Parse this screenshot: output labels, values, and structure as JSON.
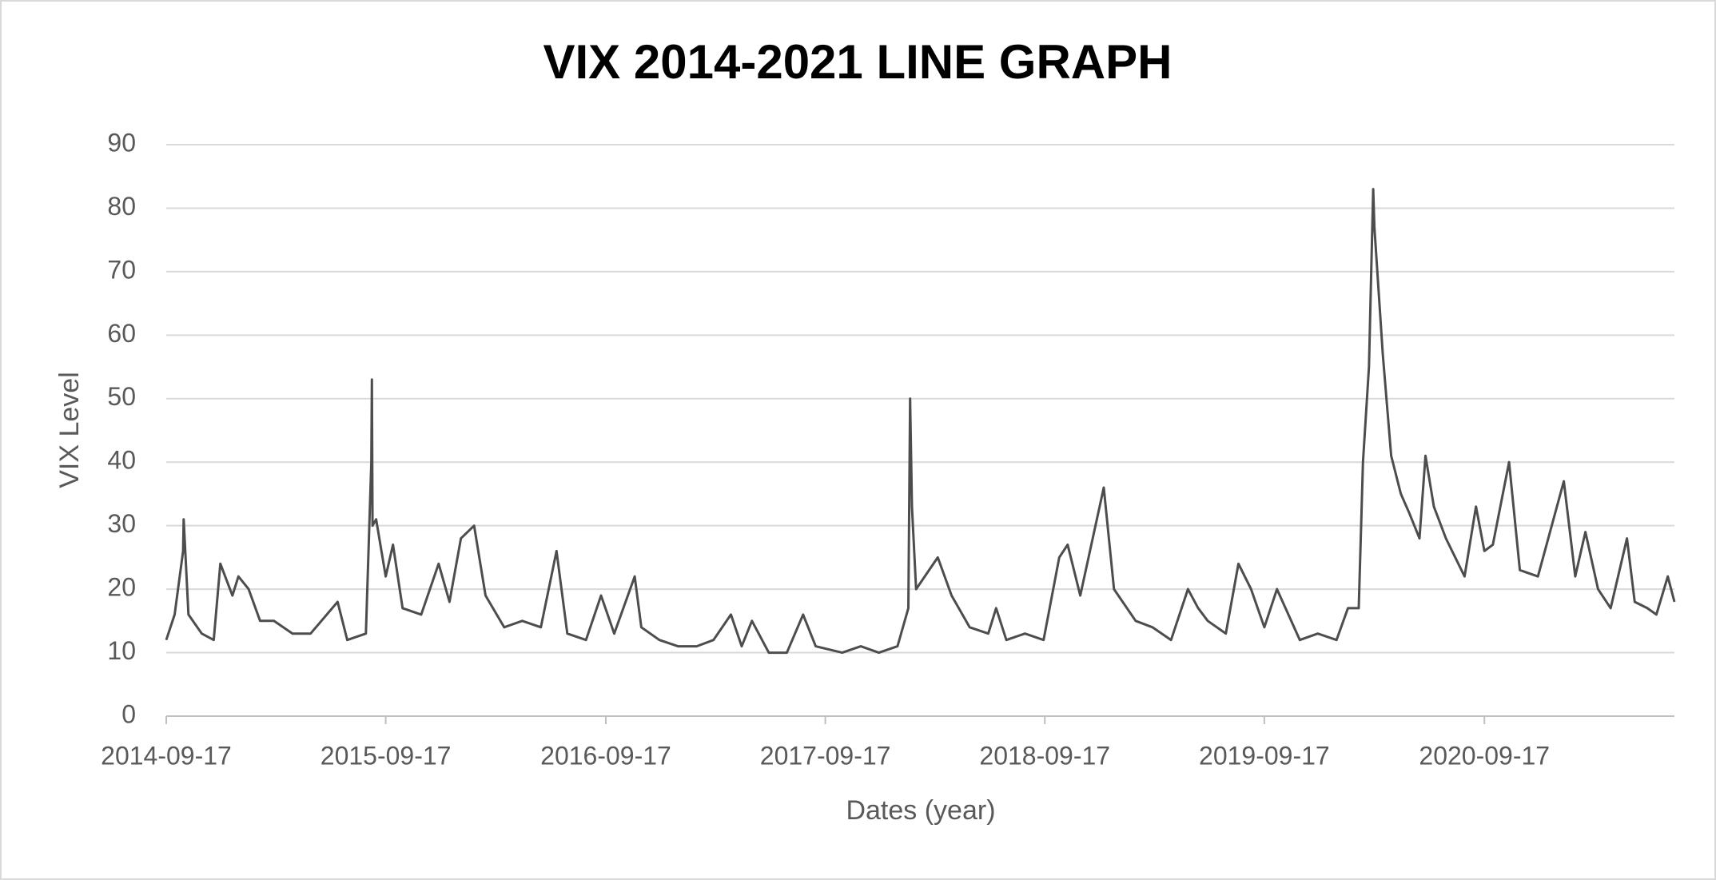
{
  "chart_data": {
    "type": "line",
    "title": "VIX 2014-2021 LINE GRAPH",
    "x_label": "Dates (year)",
    "y_label": "VIX Level",
    "x": [
      "2014-09-17",
      "2014-10-01",
      "2014-10-15",
      "2014-10-16",
      "2014-10-24",
      "2014-11-15",
      "2014-12-05",
      "2014-12-16",
      "2015-01-05",
      "2015-01-15",
      "2015-02-01",
      "2015-02-20",
      "2015-03-15",
      "2015-04-15",
      "2015-05-15",
      "2015-06-29",
      "2015-07-15",
      "2015-08-15",
      "2015-08-24",
      "2015-08-25",
      "2015-08-26",
      "2015-09-01",
      "2015-09-17",
      "2015-09-29",
      "2015-10-15",
      "2015-11-15",
      "2015-12-14",
      "2016-01-01",
      "2016-01-20",
      "2016-02-11",
      "2016-03-01",
      "2016-04-01",
      "2016-05-01",
      "2016-06-01",
      "2016-06-27",
      "2016-07-15",
      "2016-08-15",
      "2016-09-09",
      "2016-10-01",
      "2016-11-04",
      "2016-11-15",
      "2016-12-15",
      "2017-01-15",
      "2017-02-15",
      "2017-03-15",
      "2017-04-13",
      "2017-05-01",
      "2017-05-18",
      "2017-06-15",
      "2017-07-15",
      "2017-08-11",
      "2017-09-01",
      "2017-10-15",
      "2017-11-15",
      "2017-12-15",
      "2018-01-15",
      "2018-02-02",
      "2018-02-05",
      "2018-02-08",
      "2018-02-15",
      "2018-03-23",
      "2018-04-15",
      "2018-05-15",
      "2018-06-15",
      "2018-06-28",
      "2018-07-15",
      "2018-08-15",
      "2018-09-15",
      "2018-10-11",
      "2018-10-25",
      "2018-11-15",
      "2018-12-24",
      "2019-01-10",
      "2019-02-15",
      "2019-03-15",
      "2019-04-15",
      "2019-05-13",
      "2019-05-30",
      "2019-06-15",
      "2019-07-15",
      "2019-08-05",
      "2019-08-26",
      "2019-09-17",
      "2019-10-08",
      "2019-11-15",
      "2019-12-15",
      "2020-01-15",
      "2020-02-03",
      "2020-02-21",
      "2020-02-28",
      "2020-03-09",
      "2020-03-16",
      "2020-03-18",
      "2020-04-01",
      "2020-04-15",
      "2020-05-01",
      "2020-05-15",
      "2020-06-01",
      "2020-06-11",
      "2020-06-25",
      "2020-07-15",
      "2020-08-15",
      "2020-09-03",
      "2020-09-17",
      "2020-10-01",
      "2020-10-28",
      "2020-11-15",
      "2020-12-15",
      "2021-01-27",
      "2021-02-15",
      "2021-03-04",
      "2021-03-25",
      "2021-04-15",
      "2021-05-12",
      "2021-05-25",
      "2021-06-15",
      "2021-06-30",
      "2021-07-19",
      "2021-07-30"
    ],
    "values": [
      12,
      16,
      26,
      31,
      16,
      13,
      12,
      24,
      19,
      22,
      20,
      15,
      15,
      13,
      13,
      18,
      12,
      13,
      40,
      53,
      30,
      31,
      22,
      27,
      17,
      16,
      24,
      18,
      28,
      30,
      19,
      14,
      15,
      14,
      26,
      13,
      12,
      19,
      13,
      22,
      14,
      12,
      11,
      11,
      12,
      16,
      11,
      15,
      10,
      10,
      16,
      11,
      10,
      11,
      10,
      11,
      17,
      50,
      33,
      20,
      25,
      19,
      14,
      13,
      17,
      12,
      13,
      12,
      25,
      27,
      19,
      36,
      20,
      15,
      14,
      12,
      20,
      17,
      15,
      13,
      24,
      20,
      14,
      20,
      12,
      13,
      12,
      17,
      17,
      40,
      55,
      83,
      77,
      57,
      41,
      35,
      32,
      28,
      41,
      33,
      28,
      22,
      33,
      26,
      27,
      40,
      23,
      22,
      37,
      22,
      29,
      20,
      17,
      28,
      18,
      17,
      16,
      22,
      18
    ],
    "color": "#4d4d4d",
    "xlim": [
      "2014-09-17",
      "2021-07-30"
    ],
    "xticks": [
      "2014-09-17",
      "2015-09-17",
      "2016-09-17",
      "2017-09-17",
      "2018-09-17",
      "2019-09-17",
      "2020-09-17"
    ],
    "ylim": [
      0,
      90
    ],
    "yticks": [
      0,
      10,
      20,
      30,
      40,
      50,
      60,
      70,
      80,
      90
    ],
    "grid": true
  }
}
